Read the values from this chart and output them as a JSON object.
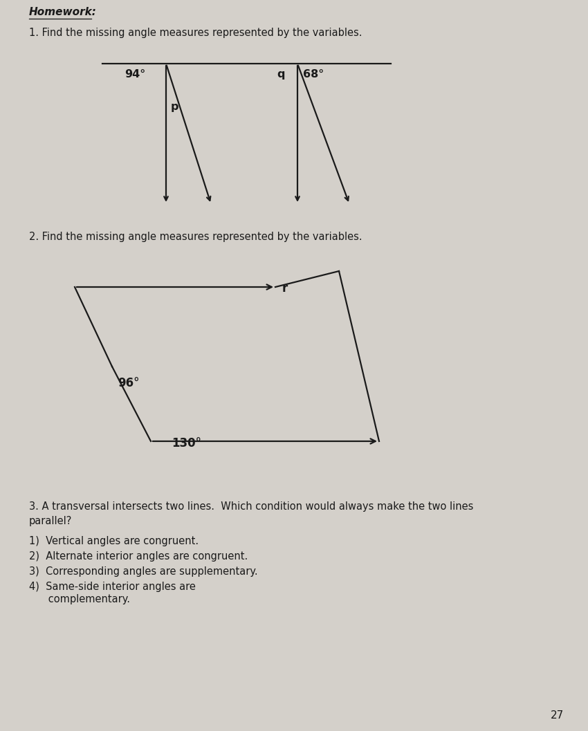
{
  "bg_color": "#d4d0ca",
  "title": "Homework:",
  "q1_text": "1. Find the missing angle measures represented by the variables.",
  "q2_text": "2. Find the missing angle measures represented by the variables.",
  "q3_text": "3. A transversal intersects two lines.  Which condition would always make the two lines\nparallel?",
  "q3_options": [
    "1)  Vertical angles are congruent.",
    "2)  Alternate interior angles are congruent.",
    "3)  Corresponding angles are supplementary.",
    "4)  Same-side interior angles are\n      complementary."
  ],
  "page_number": "27",
  "angle_94": "94°",
  "angle_p": "p",
  "angle_q": "q",
  "angle_68": "68°",
  "angle_r": "r",
  "angle_96": "96°",
  "angle_130": "130°",
  "line_color": "#1a1a1a",
  "text_color": "#1a1a1a"
}
